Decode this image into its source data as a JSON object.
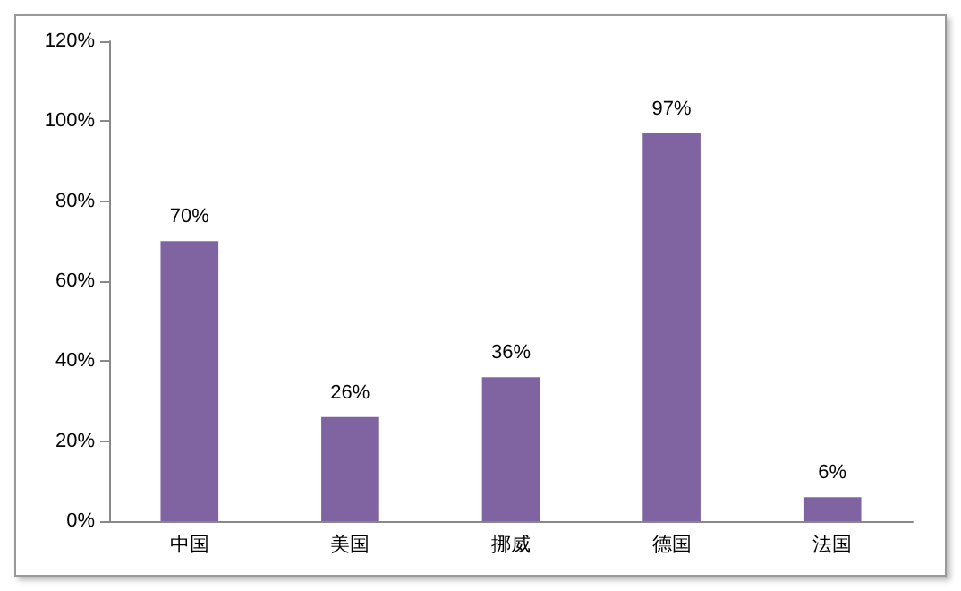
{
  "chart_data": {
    "type": "bar",
    "categories": [
      "中国",
      "美国",
      "挪威",
      "德国",
      "法国"
    ],
    "values": [
      70,
      26,
      36,
      97,
      6
    ],
    "color": "#8064a2",
    "value_labels": [
      "70%",
      "26%",
      "36%",
      "97%",
      "6%"
    ],
    "ylim": [
      0,
      120
    ],
    "yticks": [
      {
        "value": 0,
        "label": "0%"
      },
      {
        "value": 20,
        "label": "20%"
      },
      {
        "value": 40,
        "label": "40%"
      },
      {
        "value": 60,
        "label": "60%"
      },
      {
        "value": 80,
        "label": "80%"
      },
      {
        "value": 100,
        "label": "100%"
      },
      {
        "value": 120,
        "label": "120%"
      }
    ],
    "grid": false
  }
}
